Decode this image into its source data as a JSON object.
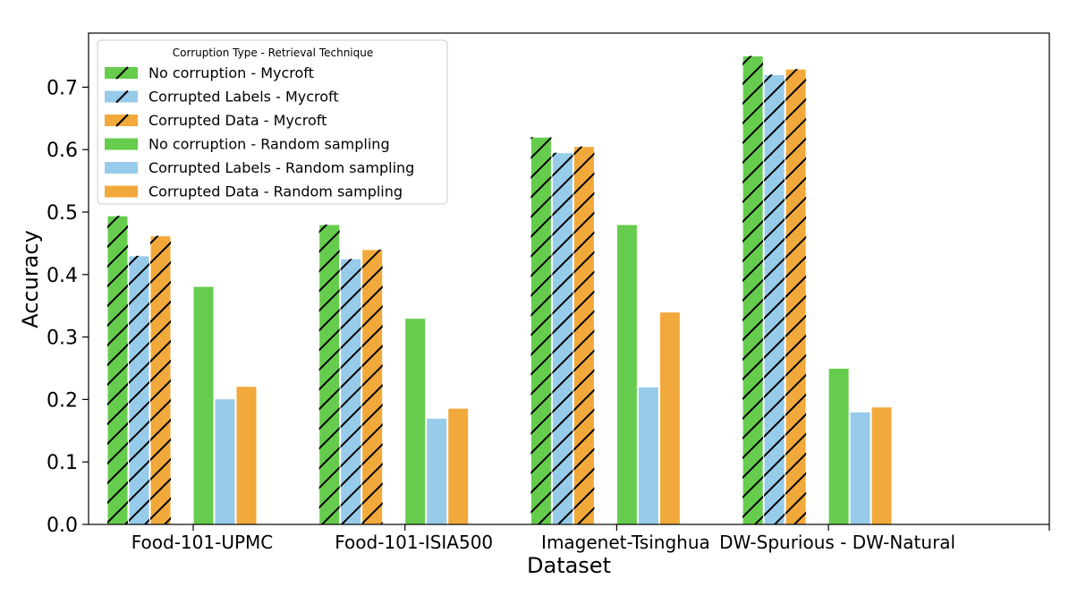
{
  "chart_data": {
    "type": "bar",
    "title": "",
    "xlabel": "Dataset",
    "ylabel": "Accuracy",
    "ylim": [
      0,
      0.78
    ],
    "yticks": [
      "0.0",
      "0.1",
      "0.2",
      "0.3",
      "0.4",
      "0.5",
      "0.6",
      "0.7"
    ],
    "categories": [
      "Food-101-UPMC",
      "Food-101-ISIA500",
      "Imagenet-Tsinghua",
      "DW-Spurious - DW-Natural"
    ],
    "legend": {
      "title": "Corruption Type - Retrieval Technique",
      "placement": "top-left"
    },
    "grid": false,
    "series": [
      {
        "name": "No corruption - Mycroft",
        "color": "#66cc4d",
        "hatch": true,
        "values": [
          0.494,
          0.48,
          0.62,
          0.75
        ]
      },
      {
        "name": "Corrupted Labels - Mycroft",
        "color": "#97cbea",
        "hatch": true,
        "values": [
          0.43,
          0.425,
          0.595,
          0.72
        ]
      },
      {
        "name": "Corrupted Data - Mycroft",
        "color": "#f2a93b",
        "hatch": true,
        "values": [
          0.462,
          0.44,
          0.605,
          0.729
        ]
      },
      {
        "name": "No corruption - Random sampling",
        "color": "#66cc4d",
        "hatch": false,
        "values": [
          0.381,
          0.33,
          0.48,
          0.25
        ]
      },
      {
        "name": "Corrupted Labels - Random sampling",
        "color": "#97cbea",
        "hatch": false,
        "values": [
          0.201,
          0.17,
          0.22,
          0.18
        ]
      },
      {
        "name": "Corrupted Data - Random sampling",
        "color": "#f2a93b",
        "hatch": false,
        "values": [
          0.221,
          0.186,
          0.34,
          0.188
        ]
      }
    ]
  }
}
